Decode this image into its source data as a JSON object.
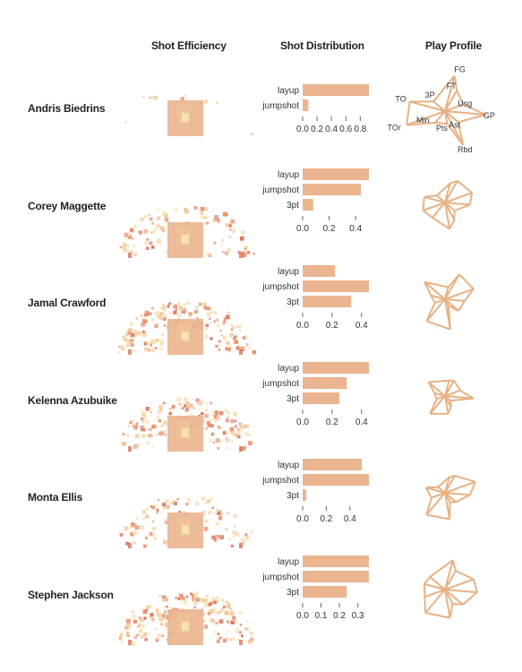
{
  "headers": {
    "efficiency": "Shot Efficiency",
    "distribution": "Shot Distribution",
    "profile": "Play Profile"
  },
  "palette": {
    "bar": "#ebb58f",
    "profile": "#e8b184",
    "paint": "#e9b48f",
    "hot": "#d7735b",
    "warm": "#f2c79c",
    "light": "#f7e2b0"
  },
  "profile_axes": [
    "FG",
    "FT",
    "Usg",
    "GP",
    "Ast",
    "Rbd",
    "Pts",
    "Min",
    "TOr",
    "TO",
    "3P"
  ],
  "chart_data": [
    {
      "type": "bar",
      "player": "Andris Biedrins",
      "categories": [
        "layup",
        "jumpshot"
      ],
      "values": [
        0.92,
        0.08
      ],
      "xticks": [
        "0.0",
        "0.2",
        "0.4",
        "0.6",
        "0.8"
      ],
      "xlim": [
        0,
        0.92
      ],
      "profile": [
        0.85,
        0.55,
        0.45,
        0.95,
        0.4,
        0.9,
        0.3,
        0.35,
        0.95,
        0.85,
        0.35
      ],
      "shot_density": 0.05
    },
    {
      "type": "bar",
      "player": "Corey Maggette",
      "categories": [
        "layup",
        "jumpshot",
        "3pt"
      ],
      "values": [
        0.5,
        0.44,
        0.08
      ],
      "xticks": [
        "0.0",
        "0.2",
        "0.4"
      ],
      "xlim": [
        0,
        0.5
      ],
      "profile": [
        0.55,
        0.7,
        0.8,
        0.7,
        0.35,
        0.55,
        0.75,
        0.55,
        0.65,
        0.6,
        0.3
      ],
      "shot_density": 0.5
    },
    {
      "type": "bar",
      "player": "Jamal Crawford",
      "categories": [
        "layup",
        "jumpshot",
        "3pt"
      ],
      "values": [
        0.22,
        0.45,
        0.33
      ],
      "xticks": [
        "0.0",
        "0.2",
        "0.4"
      ],
      "xlim": [
        0,
        0.45
      ],
      "profile": [
        0.35,
        0.8,
        0.85,
        0.55,
        0.5,
        0.2,
        0.85,
        0.8,
        0.3,
        0.4,
        0.75
      ],
      "shot_density": 0.85
    },
    {
      "type": "bar",
      "player": "Kelenna Azubuike",
      "categories": [
        "layup",
        "jumpshot",
        "3pt"
      ],
      "values": [
        0.45,
        0.3,
        0.25
      ],
      "xticks": [
        "0.0",
        "0.2",
        "0.4"
      ],
      "xlim": [
        0,
        0.45
      ],
      "profile": [
        0.45,
        0.5,
        0.45,
        0.8,
        0.2,
        0.35,
        0.5,
        0.65,
        0.25,
        0.3,
        0.6
      ],
      "shot_density": 0.75
    },
    {
      "type": "bar",
      "player": "Monta Ellis",
      "categories": [
        "layup",
        "jumpshot",
        "3pt"
      ],
      "values": [
        0.5,
        0.56,
        0.03
      ],
      "xticks": [
        "0.0",
        "0.2",
        "0.4"
      ],
      "xlim": [
        0,
        0.56
      ],
      "profile": [
        0.45,
        0.55,
        0.9,
        0.7,
        0.4,
        0.3,
        0.75,
        0.8,
        0.4,
        0.55,
        0.25
      ],
      "shot_density": 0.45
    },
    {
      "type": "bar",
      "player": "Stephen Jackson",
      "categories": [
        "layup",
        "jumpshot",
        "3pt"
      ],
      "values": [
        0.36,
        0.36,
        0.24
      ],
      "xticks": [
        "0.0",
        "0.1",
        "0.2",
        "0.3"
      ],
      "xlim": [
        0,
        0.36
      ],
      "profile": [
        0.85,
        0.6,
        0.85,
        0.9,
        0.65,
        0.45,
        0.8,
        0.85,
        0.6,
        0.6,
        0.55
      ],
      "shot_density": 0.9
    }
  ]
}
